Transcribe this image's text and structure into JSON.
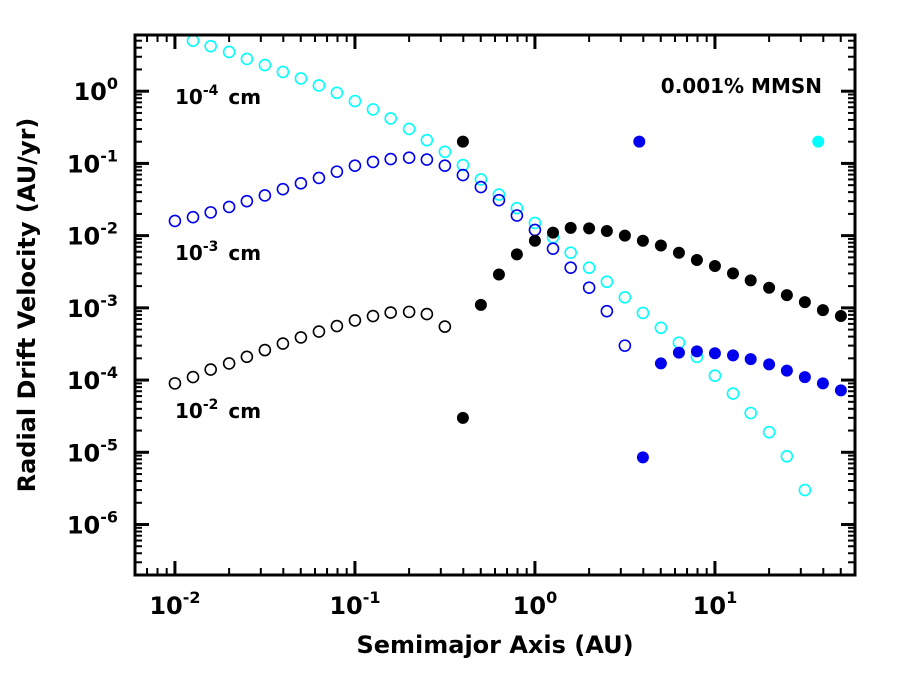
{
  "chart_data": {
    "type": "scatter",
    "title": "",
    "xlabel": "Semimajor Axis (AU)",
    "ylabel": "Radial Drift Velocity (AU/yr)",
    "xscale": "log",
    "yscale": "log",
    "xlim": [
      0.006,
      60
    ],
    "ylim": [
      2e-07,
      6
    ],
    "grid": false,
    "x_ticks": [
      {
        "value": 0.01,
        "base": "10",
        "exp": "-2"
      },
      {
        "value": 0.1,
        "base": "10",
        "exp": "-1"
      },
      {
        "value": 1,
        "base": "10",
        "exp": "0"
      },
      {
        "value": 10,
        "base": "10",
        "exp": "1"
      }
    ],
    "y_ticks": [
      {
        "value": 1,
        "base": "10",
        "exp": "0"
      },
      {
        "value": 0.1,
        "base": "10",
        "exp": "-1"
      },
      {
        "value": 0.01,
        "base": "10",
        "exp": "-2"
      },
      {
        "value": 0.001,
        "base": "10",
        "exp": "-3"
      },
      {
        "value": 0.0001,
        "base": "10",
        "exp": "-4"
      },
      {
        "value": 1e-05,
        "base": "10",
        "exp": "-5"
      },
      {
        "value": 1e-06,
        "base": "10",
        "exp": "-6"
      }
    ],
    "annotations": {
      "mmsn": "0.001% MMSN",
      "size_1e4": {
        "base": "10",
        "exp": "-4",
        "unit": "cm"
      },
      "size_1e3": {
        "base": "10",
        "exp": "-3",
        "unit": "cm"
      },
      "size_1e2": {
        "base": "10",
        "exp": "-2",
        "unit": "cm"
      }
    },
    "series": [
      {
        "name": "1e-4 cm (open)",
        "color": "#00ffff",
        "filled": false,
        "x": [
          0.0126,
          0.0158,
          0.02,
          0.0251,
          0.0316,
          0.0398,
          0.0501,
          0.0631,
          0.0794,
          0.1,
          0.126,
          0.158,
          0.2,
          0.251,
          0.316,
          0.398,
          0.501,
          0.631,
          0.794,
          1.0,
          1.26,
          1.58,
          2.0,
          2.51,
          3.16,
          3.98,
          5.01,
          6.31,
          7.94,
          10.0,
          12.6,
          15.8,
          20.0,
          25.1,
          31.6
        ],
        "y": [
          5.0,
          4.2,
          3.5,
          2.8,
          2.3,
          1.85,
          1.5,
          1.2,
          0.95,
          0.73,
          0.56,
          0.42,
          0.3,
          0.21,
          0.145,
          0.095,
          0.06,
          0.037,
          0.024,
          0.015,
          0.0095,
          0.0058,
          0.0036,
          0.0023,
          0.0014,
          0.00085,
          0.00053,
          0.00033,
          0.00021,
          0.000115,
          6.5e-05,
          3.5e-05,
          1.9e-05,
          8.8e-06,
          3e-06
        ]
      },
      {
        "name": "1e-4 cm (filled)",
        "color": "#00ffff",
        "filled": true,
        "x": [
          37.5
        ],
        "y": [
          0.2
        ]
      },
      {
        "name": "1e-3 cm (open)",
        "color": "#0000ee",
        "filled": false,
        "x": [
          0.01,
          0.0126,
          0.0158,
          0.02,
          0.0251,
          0.0316,
          0.0398,
          0.0501,
          0.0631,
          0.0794,
          0.1,
          0.126,
          0.158,
          0.2,
          0.251,
          0.316,
          0.398,
          0.501,
          0.631,
          0.794,
          1.0,
          1.26,
          1.58,
          2.0,
          2.51,
          3.16
        ],
        "y": [
          0.016,
          0.018,
          0.021,
          0.025,
          0.03,
          0.036,
          0.044,
          0.053,
          0.063,
          0.077,
          0.093,
          0.105,
          0.115,
          0.12,
          0.113,
          0.093,
          0.069,
          0.047,
          0.031,
          0.019,
          0.012,
          0.0066,
          0.0036,
          0.0019,
          0.0009,
          0.0003
        ]
      },
      {
        "name": "1e-3 cm (filled)",
        "color": "#0000ee",
        "filled": true,
        "x": [
          3.8,
          3.98,
          5.01,
          6.31,
          7.94,
          10.0,
          12.6,
          15.8,
          20.0,
          25.1,
          31.6,
          39.8,
          50.1
        ],
        "y": [
          0.2,
          8.5e-06,
          0.00017,
          0.00024,
          0.00025,
          0.000235,
          0.00022,
          0.000195,
          0.000165,
          0.000135,
          0.00011,
          9e-05,
          7.2e-05
        ]
      },
      {
        "name": "1e-2 cm (open)",
        "color": "#000000",
        "filled": false,
        "x": [
          0.01,
          0.0126,
          0.0158,
          0.02,
          0.0251,
          0.0316,
          0.0398,
          0.0501,
          0.0631,
          0.0794,
          0.1,
          0.126,
          0.158,
          0.2,
          0.251,
          0.316
        ],
        "y": [
          9e-05,
          0.00011,
          0.00014,
          0.00017,
          0.00021,
          0.00026,
          0.00032,
          0.00039,
          0.00047,
          0.00056,
          0.00067,
          0.00077,
          0.00086,
          0.00088,
          0.00082,
          0.00055
        ]
      },
      {
        "name": "1e-2 cm (filled)",
        "color": "#000000",
        "filled": true,
        "x": [
          0.398,
          0.398,
          0.501,
          0.631,
          0.794,
          1.0,
          1.26,
          1.58,
          2.0,
          2.51,
          3.16,
          3.98,
          5.01,
          6.31,
          7.94,
          10.0,
          12.6,
          15.8,
          20.0,
          25.1,
          31.6,
          39.8,
          50.1
        ],
        "y": [
          0.2,
          3e-05,
          0.0011,
          0.0029,
          0.0055,
          0.0085,
          0.011,
          0.0128,
          0.0126,
          0.0116,
          0.01,
          0.0085,
          0.0073,
          0.0058,
          0.0046,
          0.0038,
          0.003,
          0.0024,
          0.0019,
          0.0015,
          0.0012,
          0.00093,
          0.00077
        ]
      }
    ]
  }
}
